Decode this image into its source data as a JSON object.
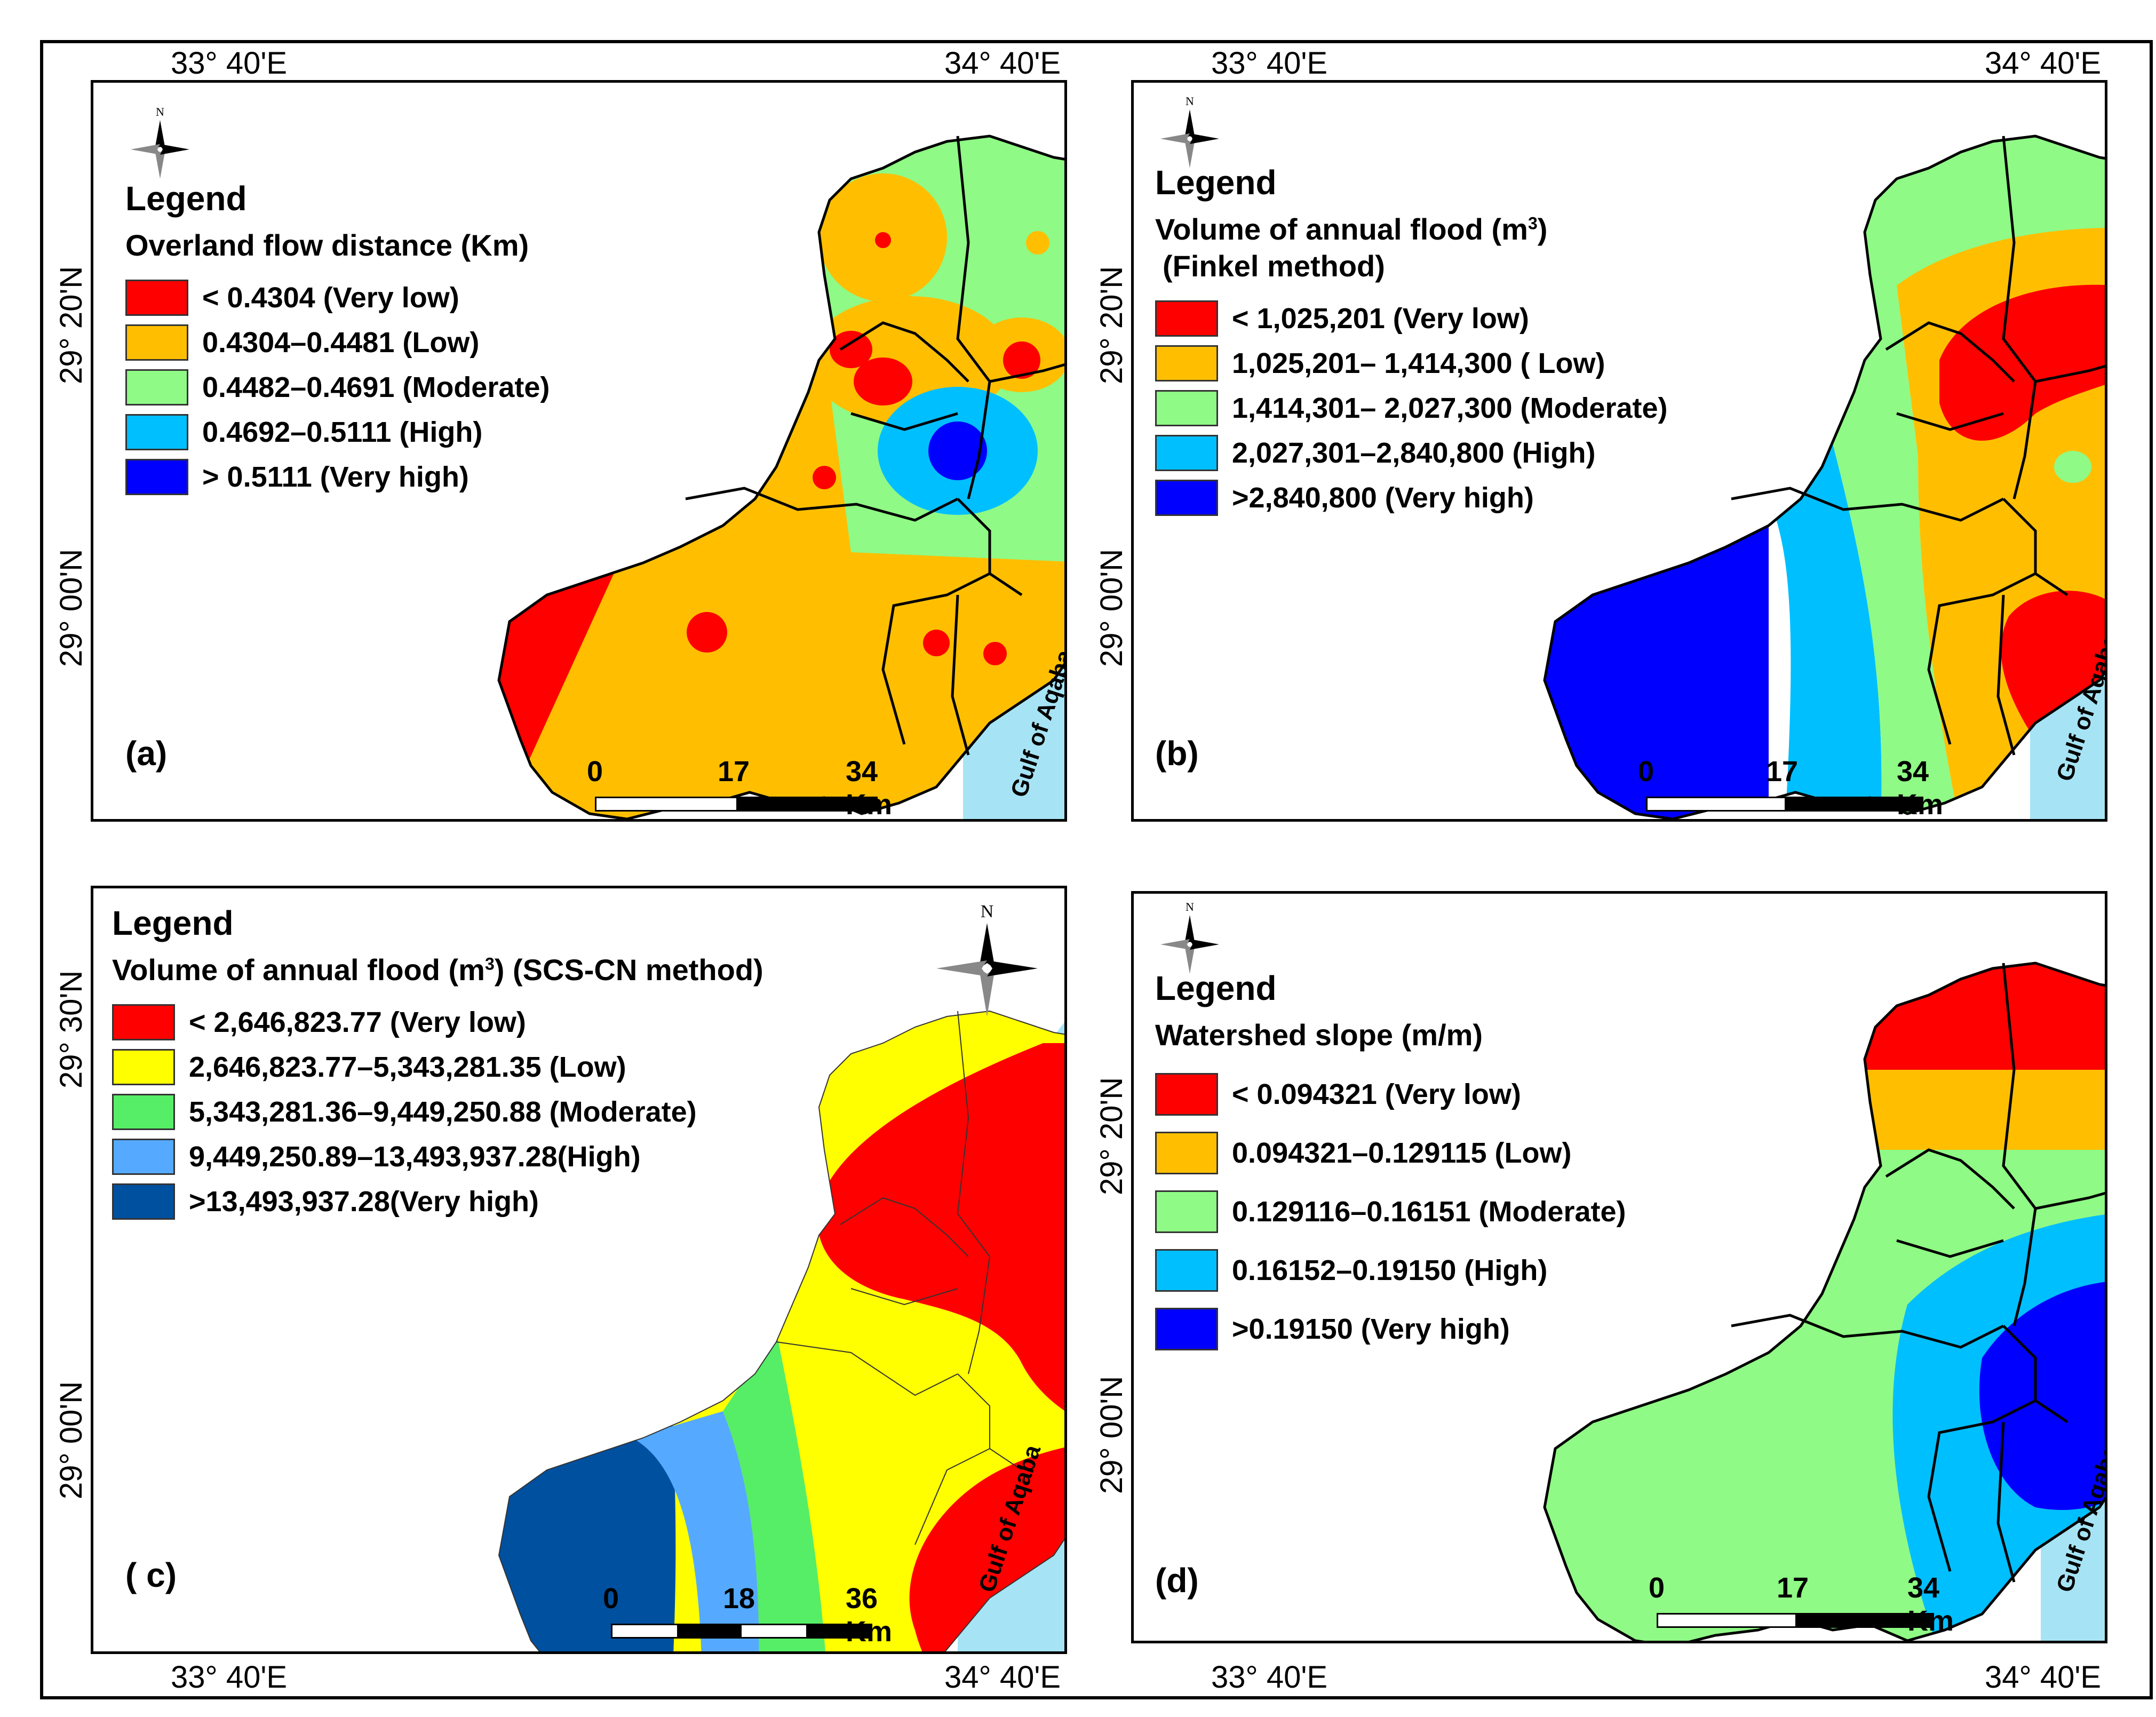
{
  "coords": {
    "lon_left": "33° 40'E",
    "lon_right": "34° 40'E",
    "lat_top": "29° 20'N",
    "lat_bottom": "29° 00'N",
    "lat_c_top": "29° 30'N"
  },
  "north_letter": "N",
  "scale_units": "Km",
  "gulf_label": "Gulf of Aqaba",
  "colors": {
    "red": "#ff0000",
    "orange": "#ffbf00",
    "light_green": "#8ffa85",
    "light_blue": "#00bfff",
    "blue": "#0000ff",
    "yellow": "#ffff00",
    "green": "#55ee66",
    "sky": "#55aaff",
    "navy": "#0050a0",
    "sea": "#a6e4f5"
  },
  "panels": {
    "a": {
      "label": "(a)",
      "legend_title": "Legend",
      "variable": "Overland flow distance (Km)",
      "classes": [
        {
          "label": "< 0.4304 (Very low)",
          "color": "#ff0000"
        },
        {
          "label": "0.4304–0.4481 (Low)",
          "color": "#ffbf00"
        },
        {
          "label": "0.4482–0.4691 (Moderate)",
          "color": "#8ffa85"
        },
        {
          "label": "0.4692–0.5111 (High)",
          "color": "#00bfff"
        },
        {
          "label": "> 0.5111 (Very high)",
          "color": "#0000ff"
        }
      ],
      "scale": [
        "0",
        "17",
        "34 Km"
      ]
    },
    "b": {
      "label": "(b)",
      "legend_title": "Legend",
      "variable": "Volume of annual flood (m",
      "variable_sup": "3",
      "variable_end": ")",
      "method": "(Finkel method)",
      "classes": [
        {
          "label": "< 1,025,201 (Very low)",
          "color": "#ff0000"
        },
        {
          "label": "1,025,201– 1,414,300 ( Low)",
          "color": "#ffbf00"
        },
        {
          "label": "1,414,301– 2,027,300 (Moderate)",
          "color": "#8ffa85"
        },
        {
          "label": "2,027,301–2,840,800 (High)",
          "color": "#00bfff"
        },
        {
          "label": ">2,840,800 (Very high)",
          "color": "#0000ff"
        }
      ],
      "scale": [
        "0",
        "17",
        "34 Km"
      ]
    },
    "c": {
      "label": "( c)",
      "legend_title": "Legend",
      "variable": "Volume of annual flood (m",
      "variable_sup": "3",
      "variable_end": ") (SCS-CN method)",
      "classes": [
        {
          "label": "< 2,646,823.77 (Very low)",
          "color": "#ff0000"
        },
        {
          "label": "2,646,823.77–5,343,281.35 (Low)",
          "color": "#ffff00"
        },
        {
          "label": "5,343,281.36–9,449,250.88 (Moderate)",
          "color": "#55ee66"
        },
        {
          "label": "9,449,250.89–13,493,937.28(High)",
          "color": "#55aaff"
        },
        {
          "label": ">13,493,937.28(Very high)",
          "color": "#0050a0"
        }
      ],
      "scale": [
        "0",
        "18",
        "36 Km"
      ]
    },
    "d": {
      "label": "(d)",
      "legend_title": "Legend",
      "variable": "Watershed slope (m/m)",
      "classes": [
        {
          "label": "< 0.094321 (Very low)",
          "color": "#ff0000"
        },
        {
          "label": "0.094321–0.129115 (Low)",
          "color": "#ffbf00"
        },
        {
          "label": "0.129116–0.16151 (Moderate)",
          "color": "#8ffa85"
        },
        {
          "label": "0.16152–0.19150 (High)",
          "color": "#00bfff"
        },
        {
          "label": ">0.19150 (Very high)",
          "color": "#0000ff"
        }
      ],
      "scale": [
        "0",
        "17",
        "34 Km"
      ]
    }
  }
}
